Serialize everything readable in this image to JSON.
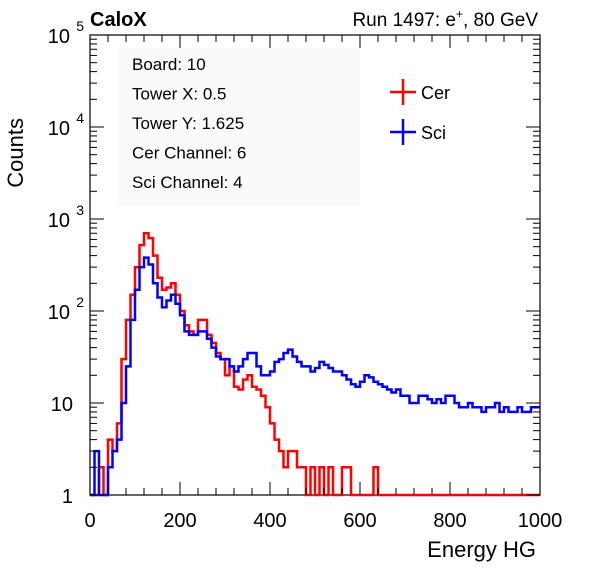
{
  "header": {
    "left_title": "CaloX",
    "run_label": "Run 1497: e",
    "run_sup": "+",
    "run_energy": ", 80 GeV"
  },
  "info_box": {
    "lines": [
      "Board: 10",
      "Tower X: 0.5",
      "Tower Y: 1.625",
      "Cer Channel: 6",
      "Sci Channel: 4"
    ]
  },
  "legend": {
    "entries": [
      {
        "label": "Cer",
        "color": "#ff0000"
      },
      {
        "label": "Sci",
        "color": "#0000ff"
      }
    ]
  },
  "chart_data": {
    "type": "line",
    "xlabel": "Energy HG",
    "ylabel": "Counts",
    "xlim": [
      0,
      1000
    ],
    "ylim": [
      1,
      100000
    ],
    "y_scale": "log",
    "x_ticks": [
      0,
      200,
      400,
      600,
      800,
      1000
    ],
    "y_ticks": [
      {
        "value": 1,
        "base": "1",
        "exp": ""
      },
      {
        "value": 10,
        "base": "10",
        "exp": ""
      },
      {
        "value": 100,
        "base": "10",
        "exp": "2"
      },
      {
        "value": 1000,
        "base": "10",
        "exp": "3"
      },
      {
        "value": 10000,
        "base": "10",
        "exp": "4"
      },
      {
        "value": 100000,
        "base": "10",
        "exp": "5"
      }
    ],
    "x": [
      0,
      10,
      20,
      30,
      40,
      50,
      60,
      70,
      80,
      90,
      100,
      110,
      120,
      130,
      140,
      150,
      160,
      170,
      180,
      190,
      200,
      210,
      220,
      230,
      240,
      250,
      260,
      270,
      280,
      290,
      300,
      310,
      320,
      330,
      340,
      350,
      360,
      370,
      380,
      390,
      400,
      410,
      420,
      430,
      440,
      450,
      460,
      470,
      480,
      490,
      500,
      510,
      520,
      530,
      540,
      550,
      560,
      570,
      580,
      590,
      600,
      610,
      620,
      630,
      640,
      650,
      660,
      670,
      680,
      690,
      700,
      710,
      720,
      730,
      740,
      750,
      760,
      770,
      780,
      790,
      800,
      810,
      820,
      830,
      840,
      850,
      860,
      870,
      880,
      890,
      900,
      910,
      920,
      930,
      940,
      950,
      960,
      970,
      980,
      990,
      1000
    ],
    "series": [
      {
        "name": "Cer",
        "color": "#ff0000",
        "values": [
          1,
          1,
          2,
          1,
          4,
          3,
          6,
          30,
          80,
          150,
          300,
          520,
          700,
          620,
          400,
          230,
          170,
          180,
          200,
          150,
          100,
          70,
          60,
          55,
          80,
          80,
          55,
          45,
          35,
          30,
          20,
          25,
          15,
          14,
          18,
          20,
          15,
          14,
          12,
          9,
          6,
          4,
          3,
          2,
          3,
          3,
          2,
          2,
          1,
          2,
          1,
          2,
          1,
          2,
          1,
          1,
          2,
          2,
          1,
          1,
          1,
          1,
          1,
          2,
          1,
          1,
          1,
          1,
          1,
          1,
          1,
          1,
          1,
          1,
          1,
          1,
          1,
          1,
          1,
          1,
          1,
          1,
          1,
          1,
          1,
          1,
          1,
          1,
          1,
          1,
          1,
          1,
          1,
          1,
          1,
          1,
          1,
          1,
          1,
          1,
          1
        ]
      },
      {
        "name": "Sci",
        "color": "#0000ff",
        "values": [
          1,
          3,
          1,
          1,
          2,
          3,
          4,
          10,
          25,
          80,
          170,
          300,
          380,
          320,
          200,
          140,
          110,
          130,
          150,
          120,
          90,
          60,
          55,
          55,
          60,
          60,
          50,
          40,
          32,
          30,
          30,
          25,
          22,
          25,
          30,
          35,
          35,
          25,
          20,
          20,
          22,
          28,
          30,
          35,
          38,
          32,
          28,
          25,
          25,
          22,
          24,
          28,
          26,
          24,
          22,
          22,
          20,
          18,
          16,
          15,
          17,
          20,
          19,
          17,
          16,
          15,
          14,
          13,
          14,
          12,
          12,
          10,
          10,
          12,
          12,
          11,
          10,
          11,
          10,
          12,
          12,
          10,
          9,
          9,
          10,
          9,
          9,
          8,
          9,
          9,
          10,
          8,
          9,
          8,
          8,
          9,
          8,
          8,
          9,
          9,
          9
        ]
      }
    ]
  }
}
